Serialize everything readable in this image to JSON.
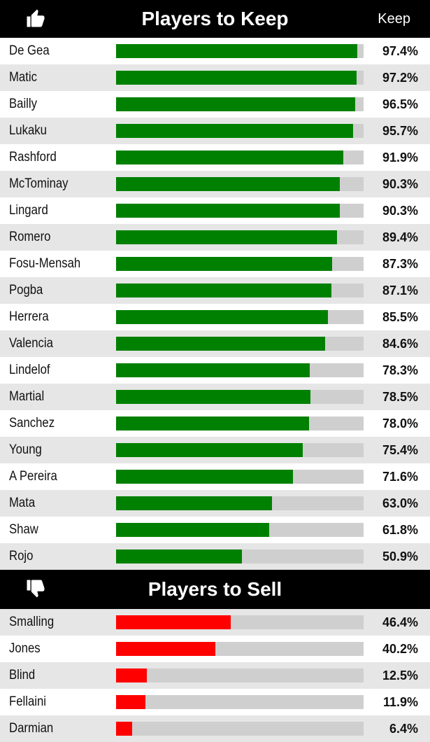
{
  "keep": {
    "title": "Players to Keep",
    "column_label": "Keep",
    "icon": "thumbs-up-icon",
    "bar_color": "#008000",
    "rows": [
      {
        "name": "De Gea",
        "label": "97.4%",
        "value": 97.4
      },
      {
        "name": "Matic",
        "label": "97.2%",
        "value": 97.2
      },
      {
        "name": "Bailly",
        "label": "96.5%",
        "value": 96.5
      },
      {
        "name": "Lukaku",
        "label": "95.7%",
        "value": 95.7
      },
      {
        "name": "Rashford",
        "label": "91.9%",
        "value": 91.9
      },
      {
        "name": "McTominay",
        "label": "90.3%",
        "value": 90.3
      },
      {
        "name": "Lingard",
        "label": "90.3%",
        "value": 90.3
      },
      {
        "name": "Romero",
        "label": "89.4%",
        "value": 89.4
      },
      {
        "name": "Fosu-Mensah",
        "label": "87.3%",
        "value": 87.3
      },
      {
        "name": "Pogba",
        "label": "87.1%",
        "value": 87.1
      },
      {
        "name": "Herrera",
        "label": "85.5%",
        "value": 85.5
      },
      {
        "name": "Valencia",
        "label": "84.6%",
        "value": 84.6
      },
      {
        "name": "Lindelof",
        "label": "78.3%",
        "value": 78.3
      },
      {
        "name": "Martial",
        "label": "78.5%",
        "value": 78.5
      },
      {
        "name": "Sanchez",
        "label": "78.0%",
        "value": 78.0
      },
      {
        "name": "Young",
        "label": "75.4%",
        "value": 75.4
      },
      {
        "name": "A Pereira",
        "label": "71.6%",
        "value": 71.6
      },
      {
        "name": "Mata",
        "label": "63.0%",
        "value": 63.0
      },
      {
        "name": "Shaw",
        "label": "61.8%",
        "value": 61.8
      },
      {
        "name": "Rojo",
        "label": "50.9%",
        "value": 50.9
      }
    ]
  },
  "sell": {
    "title": "Players to Sell",
    "icon": "thumbs-down-icon",
    "bar_color": "#ff0000",
    "rows": [
      {
        "name": "Smalling",
        "label": "46.4%",
        "value": 46.4
      },
      {
        "name": "Jones",
        "label": "40.2%",
        "value": 40.2
      },
      {
        "name": "Blind",
        "label": "12.5%",
        "value": 12.5
      },
      {
        "name": "Fellaini",
        "label": "11.9%",
        "value": 11.9
      },
      {
        "name": "Darmian",
        "label": "6.4%",
        "value": 6.4
      }
    ]
  },
  "chart_data": {
    "type": "bar",
    "orientation": "horizontal",
    "ylim": [
      0,
      100
    ],
    "series": [
      {
        "name": "Players to Keep",
        "categories": [
          "De Gea",
          "Matic",
          "Bailly",
          "Lukaku",
          "Rashford",
          "McTominay",
          "Lingard",
          "Romero",
          "Fosu-Mensah",
          "Pogba",
          "Herrera",
          "Valencia",
          "Lindelof",
          "Martial",
          "Sanchez",
          "Young",
          "A Pereira",
          "Mata",
          "Shaw",
          "Rojo"
        ],
        "values": [
          97.4,
          97.2,
          96.5,
          95.7,
          91.9,
          90.3,
          90.3,
          89.4,
          87.3,
          87.1,
          85.5,
          84.6,
          78.3,
          78.5,
          78.0,
          75.4,
          71.6,
          63.0,
          61.8,
          50.9
        ]
      },
      {
        "name": "Players to Sell",
        "categories": [
          "Smalling",
          "Jones",
          "Blind",
          "Fellaini",
          "Darmian"
        ],
        "values": [
          46.4,
          40.2,
          12.5,
          11.9,
          6.4
        ]
      }
    ]
  }
}
